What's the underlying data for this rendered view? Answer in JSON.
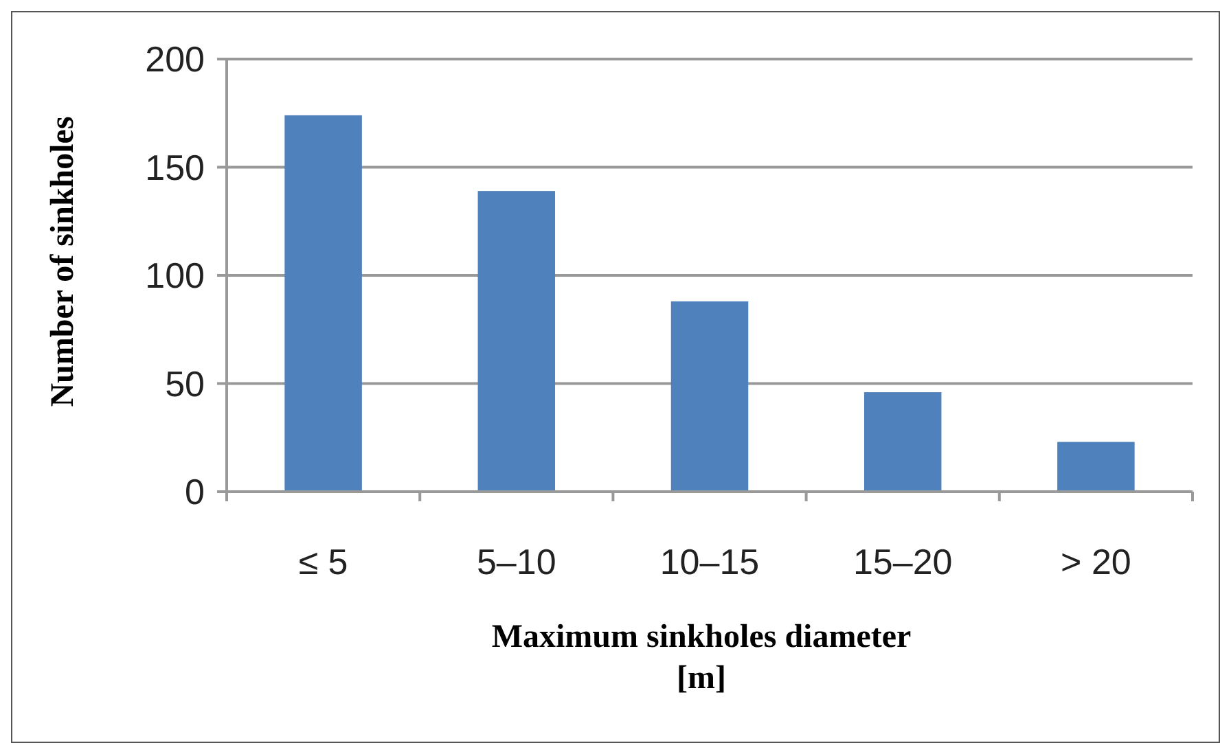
{
  "chart_data": {
    "type": "bar",
    "xlabel": "Maximum sinkholes diameter\n[m]",
    "ylabel": "Number of sinkholes",
    "categories": [
      "≤ 5",
      "5–10",
      "10–15",
      "15–20",
      "> 20"
    ],
    "values": [
      174,
      139,
      88,
      46,
      23
    ],
    "color": "#4f81bd",
    "ylim": [
      0,
      200
    ],
    "yticks": [
      0,
      50,
      100,
      150,
      200
    ],
    "grid": "y"
  }
}
